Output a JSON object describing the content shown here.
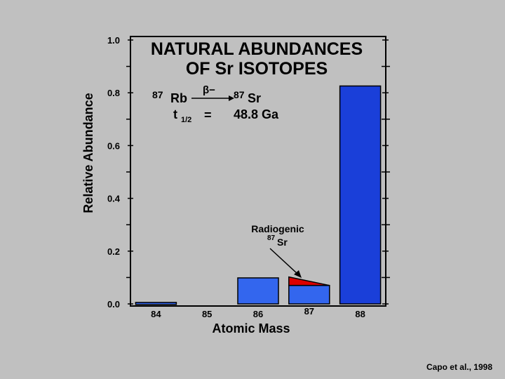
{
  "chart_data": {
    "type": "bar",
    "title_line1": "NATURAL ABUNDANCES",
    "title_line2": "OF Sr ISOTOPES",
    "xlabel": "Atomic Mass",
    "ylabel": "Relative Abundance",
    "ylim": [
      0,
      1.0
    ],
    "yticks": [
      "0.0",
      "0.2",
      "0.4",
      "0.6",
      "0.8",
      "1.0"
    ],
    "categories": [
      "84",
      "85",
      "86",
      "87",
      "88"
    ],
    "values": [
      0.0056,
      0,
      0.0986,
      0.07,
      0.8258
    ],
    "radiogenic_87": 0.032,
    "colors": {
      "bar": "#3366ee",
      "bar_dark": "#1a3fd9",
      "radiogenic": "#dd0000",
      "outline": "#000000"
    }
  },
  "equation": {
    "parent_mass": "87",
    "parent": "Rb",
    "decay": "β−",
    "daughter_mass": "87",
    "daughter": "Sr",
    "halflife_label": "t",
    "halflife_sub": "1/2",
    "equals": "=",
    "halflife_value": "48.8 Ga"
  },
  "annotation": {
    "line1": "Radiogenic",
    "mass": "87",
    "element": "Sr"
  },
  "credit": "Capo et al., 1998"
}
